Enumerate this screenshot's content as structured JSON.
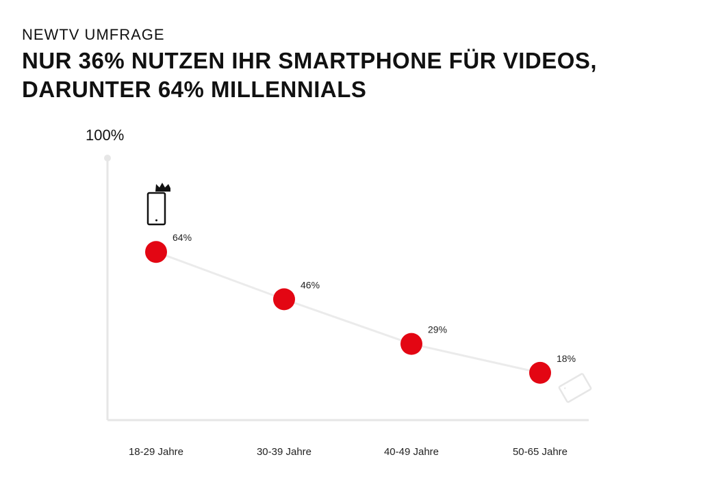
{
  "header": {
    "eyebrow": "NEWTV UMFRAGE",
    "headline_line1": "NUR 36% NUTZEN IHR SMARTPHONE FÜR VIDEOS,",
    "headline_line2": "DARUNTER 64% MILLENNIALS"
  },
  "colors": {
    "accent": "#e30613",
    "line": "#ebebeb",
    "axis": "#e6e6e6",
    "text": "#111111"
  },
  "icons": {
    "phone_portrait": "smartphone-with-crown-icon",
    "phone_landscape": "smartphone-landscape-icon"
  },
  "chart_data": {
    "type": "line",
    "y_max_label": "100%",
    "ylim": [
      0,
      100
    ],
    "categories": [
      "18-29 Jahre",
      "30-39 Jahre",
      "40-49 Jahre",
      "50-65 Jahre"
    ],
    "values": [
      64,
      46,
      29,
      18
    ],
    "value_labels": [
      "64%",
      "46%",
      "29%",
      "18%"
    ],
    "grid": false,
    "legend": "none"
  }
}
